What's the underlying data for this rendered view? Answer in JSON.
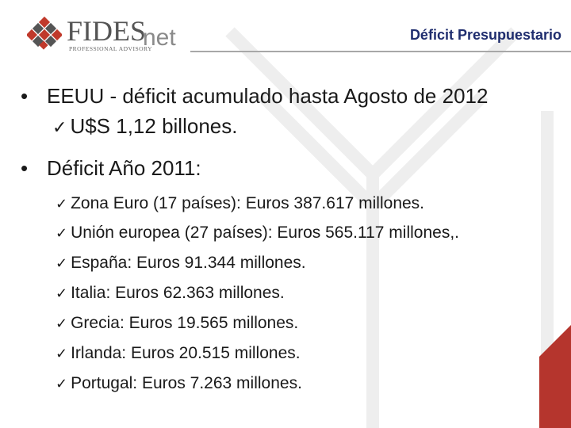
{
  "header": {
    "logo": {
      "brand": "FIDES",
      "suffix": "net",
      "tagline": "PROFESSIONAL ADVISORY"
    },
    "title": "Déficit Presupuestario"
  },
  "colors": {
    "title": "#1f2d6e",
    "logo_red": "#c0392b",
    "logo_gray": "#555555",
    "accent": "#b5352d"
  },
  "content": {
    "bullet1": {
      "text": "EEUU - déficit acumulado hasta Agosto de 2012",
      "sub": "U$S 1,12 billones."
    },
    "bullet2": {
      "text": "Déficit Año 2011:",
      "items": [
        "Zona Euro (17 países): Euros 387.617 millones.",
        "Unión europea (27 países): Euros 565.117 millones,.",
        "España: Euros 91.344 millones.",
        "Italia: Euros 62.363 millones.",
        "Grecia:  Euros 19.565 millones.",
        "Irlanda: Euros 20.515 millones.",
        "Portugal: Euros 7.263 millones."
      ]
    }
  }
}
